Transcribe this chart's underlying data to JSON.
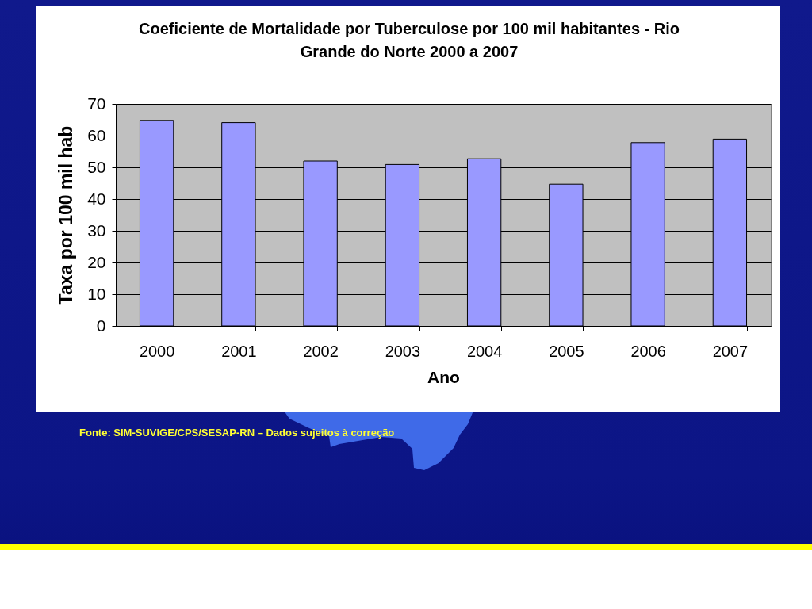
{
  "chart_data": {
    "type": "bar",
    "title": "Coeficiente de Mortalidade por Tuberculose por 100 mil habitantes - Rio Grande do Norte 2000 a 2007",
    "xlabel": "Ano",
    "ylabel": "Taxa por 100 mil hab",
    "categories": [
      "2000",
      "2001",
      "2002",
      "2003",
      "2004",
      "2005",
      "2006",
      "2007"
    ],
    "values": [
      64.8,
      64.1,
      52,
      50.9,
      52.7,
      44.7,
      57.8,
      58.9
    ],
    "color": "#9999ff",
    "ylim": [
      0,
      70
    ],
    "yticks": [
      0,
      10,
      20,
      30,
      40,
      50,
      60,
      70
    ],
    "grid": "y",
    "annotations": [
      "Fonte: SIM-SUVIGE/CPS/SESAP-RN – Dados sujeitos à correção"
    ]
  }
}
